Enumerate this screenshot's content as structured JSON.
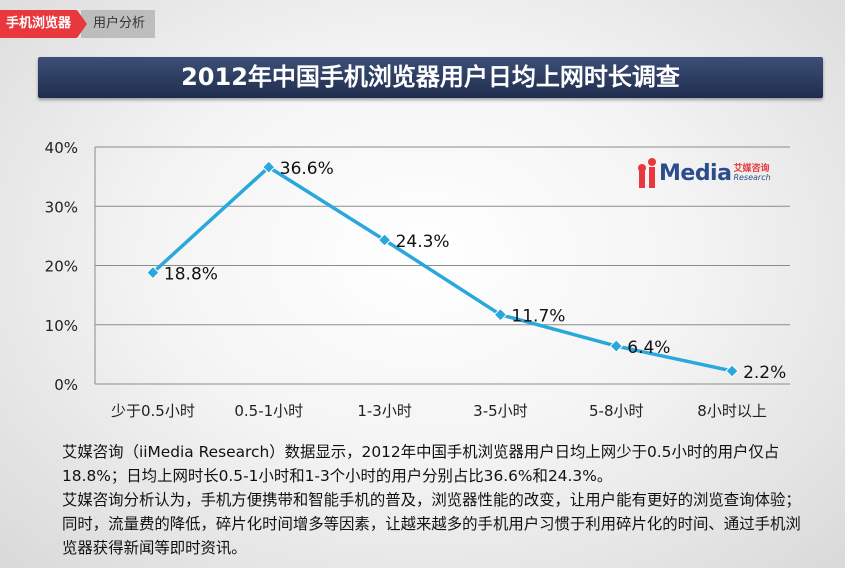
{
  "breadcrumb": {
    "section": "手机浏览器",
    "page": "用户分析"
  },
  "title": "2012年中国手机浏览器用户日均上网时长调查",
  "logo": {
    "word": "Media",
    "cn": "艾媒咨询",
    "en": "Research"
  },
  "chart_data": {
    "type": "line",
    "title": "2012年中国手机浏览器用户日均上网时长调查",
    "categories": [
      "少于0.5小时",
      "0.5-1小时",
      "1-3小时",
      "3-5小时",
      "5-8小时",
      "8小时以上"
    ],
    "values": [
      18.8,
      36.6,
      24.3,
      11.7,
      6.4,
      2.2
    ],
    "data_labels": [
      "18.8%",
      "36.6%",
      "24.3%",
      "11.7%",
      "6.4%",
      "2.2%"
    ],
    "y_ticks": [
      "0%",
      "10%",
      "20%",
      "30%",
      "40%"
    ],
    "ylim": [
      0,
      40
    ],
    "grid": true,
    "color": "#2aa8dc"
  },
  "description": [
    "艾媒咨询（iiMedia Research）数据显示，2012年中国手机浏览器用户日均上网少于0.5小时的用户仅占18.8%；日均上网时长0.5-1小时和1-3个小时的用户分别占比36.6%和24.3%。",
    "艾媒咨询分析认为，手机方便携带和智能手机的普及，浏览器性能的改变，让用户能有更好的浏览查询体验；同时，流量费的降低，碎片化时间增多等因素，让越来越多的手机用户习惯于利用碎片化的时间、通过手机浏览器获得新闻等即时资讯。"
  ]
}
